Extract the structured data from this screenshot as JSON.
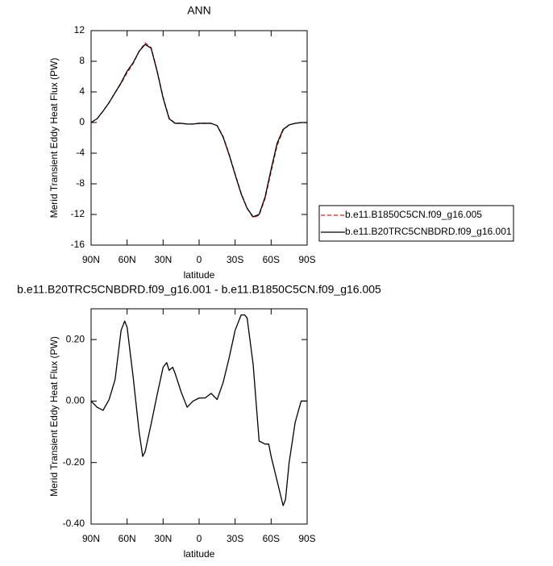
{
  "chart_data": [
    {
      "type": "line",
      "title": "ANN",
      "x_label": "latitude",
      "y_label": "Merid Transient Eddy Heat Flux (PW)",
      "x": [
        90,
        85,
        80,
        75,
        70,
        65,
        60,
        55,
        50,
        45,
        40,
        35,
        30,
        25,
        20,
        15,
        10,
        5,
        0,
        -5,
        -10,
        -15,
        -20,
        -25,
        -30,
        -35,
        -40,
        -45,
        -50,
        -55,
        -60,
        -65,
        -70,
        -75,
        -80,
        -85,
        -90
      ],
      "series": [
        {
          "name": "b.e11.B1850C5CN.f09_g16.005",
          "color": "#e41a1c",
          "style": "dashed",
          "values": [
            0,
            0.5,
            1.5,
            2.6,
            3.9,
            5.1,
            6.5,
            7.7,
            9.3,
            10.4,
            9.8,
            6.8,
            3.3,
            0.6,
            -0.1,
            -0.1,
            -0.2,
            -0.2,
            -0.1,
            -0.1,
            -0.1,
            -0.4,
            -1.8,
            -4.1,
            -6.7,
            -9.2,
            -11.2,
            -12.4,
            -12.1,
            -9.9,
            -6.4,
            -3.0,
            -1.0,
            -0.3,
            -0.1,
            0,
            0
          ]
        },
        {
          "name": "b.e11.B20TRC5CNBDRD.f09_g16.001",
          "color": "#000000",
          "style": "solid",
          "values": [
            0,
            0.5,
            1.5,
            2.6,
            3.9,
            5.2,
            6.7,
            7.8,
            9.3,
            10.2,
            9.7,
            6.7,
            3.2,
            0.5,
            -0.1,
            -0.1,
            -0.2,
            -0.2,
            -0.1,
            -0.1,
            -0.1,
            -0.4,
            -1.9,
            -4.2,
            -6.8,
            -9.3,
            -11.2,
            -12.3,
            -12.0,
            -9.7,
            -6.1,
            -2.7,
            -0.9,
            -0.3,
            -0.1,
            0,
            0
          ]
        }
      ],
      "xlim": [
        90,
        -90
      ],
      "xticks": [
        {
          "value": 90,
          "label": "90N"
        },
        {
          "value": 60,
          "label": "60N"
        },
        {
          "value": 30,
          "label": "30N"
        },
        0,
        {
          "value": -30,
          "label": "30S"
        },
        {
          "value": -60,
          "label": "60S"
        },
        {
          "value": -90,
          "label": "90S"
        }
      ],
      "ylim": [
        -16,
        12
      ],
      "yticks": [
        -16,
        -12,
        -8,
        -4,
        0,
        4,
        8,
        12
      ],
      "legend": "outside-right",
      "grid": false
    },
    {
      "type": "line",
      "title": "b.e11.B20TRC5CNBDRD.f09_g16.001 - b.e11.B1850C5CN.f09_g16.005",
      "x_label": "latitude",
      "y_label": "Merid Transient Eddy Heat Flux (PW)",
      "x": [
        90,
        85,
        80,
        75,
        70,
        65,
        62,
        60,
        55,
        50,
        47,
        45,
        40,
        35,
        30,
        27,
        25,
        22,
        20,
        15,
        10,
        5,
        0,
        -5,
        -10,
        -15,
        -20,
        -25,
        -30,
        -35,
        -38,
        -40,
        -45,
        -50,
        -55,
        -58,
        -60,
        -65,
        -70,
        -72,
        -75,
        -80,
        -85,
        -90
      ],
      "series": [
        {
          "color": "#000000",
          "style": "solid",
          "values": [
            0,
            -0.02,
            -0.03,
            0.005,
            0.07,
            0.23,
            0.26,
            0.24,
            0.08,
            -0.1,
            -0.18,
            -0.165,
            -0.075,
            0.02,
            0.11,
            0.125,
            0.1,
            0.11,
            0.09,
            0.03,
            -0.02,
            0,
            0.01,
            0.01,
            0.025,
            0.005,
            0.06,
            0.14,
            0.23,
            0.28,
            0.28,
            0.27,
            0.12,
            -0.13,
            -0.14,
            -0.14,
            -0.18,
            -0.26,
            -0.34,
            -0.32,
            -0.2,
            -0.07,
            0,
            0
          ]
        }
      ],
      "xlim": [
        90,
        -90
      ],
      "xticks": [
        {
          "value": 90,
          "label": "90N"
        },
        {
          "value": 60,
          "label": "60N"
        },
        {
          "value": 30,
          "label": "30N"
        },
        0,
        {
          "value": -30,
          "label": "30S"
        },
        {
          "value": -60,
          "label": "60S"
        },
        {
          "value": -90,
          "label": "90S"
        }
      ],
      "ylim": [
        -0.4,
        0.3
      ],
      "yticks": [
        {
          "value": -0.4,
          "label": "-0.40"
        },
        {
          "value": -0.2,
          "label": "-0.20"
        },
        {
          "value": 0,
          "label": "0.00"
        },
        {
          "value": 0.2,
          "label": "0.20"
        }
      ],
      "grid": false
    }
  ]
}
